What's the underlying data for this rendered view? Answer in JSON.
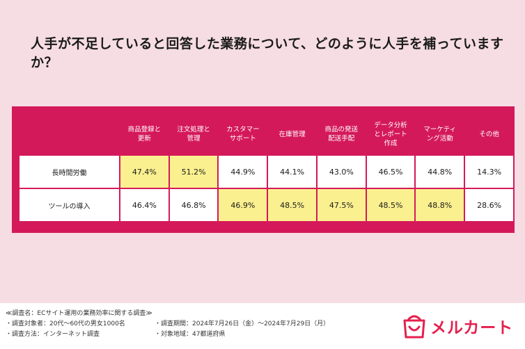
{
  "title": "人手が不足していると回答した業務について、どのように人手を補っていますか？",
  "chart_data": {
    "type": "table",
    "columns": [
      "商品登録と\n更新",
      "注文処理と\n管理",
      "カスタマー\nサポート",
      "在庫管理",
      "商品の発送\n配送手配",
      "データ分析\nとレポート\n作成",
      "マーケティ\nング活動",
      "その他"
    ],
    "rows": [
      {
        "label": "長時間労働",
        "values": [
          "47.4%",
          "51.2%",
          "44.9%",
          "44.1%",
          "43.0%",
          "46.5%",
          "44.8%",
          "14.3%"
        ],
        "highlight": [
          true,
          true,
          false,
          false,
          false,
          false,
          false,
          false
        ]
      },
      {
        "label": "ツールの導入",
        "values": [
          "46.4%",
          "46.8%",
          "46.9%",
          "48.5%",
          "47.5%",
          "48.5%",
          "48.8%",
          "28.6%"
        ],
        "highlight": [
          false,
          false,
          true,
          true,
          true,
          true,
          true,
          false
        ]
      }
    ],
    "colors": {
      "header": "#d4195a",
      "highlight": "#fbf08f",
      "cell": "#ffffff"
    }
  },
  "footer": {
    "survey_name": "≪調査名：ECサイト運用の業務効率に関する調査≫",
    "target": "・調査対象者：20代〜60代の男女1000名",
    "period": "・調査期間：2024年7月26日（金）〜2024年7月29日（月）",
    "method": "・調査方法：インターネット調査",
    "region": "・対象地域：47都道府県"
  },
  "logo": {
    "text": "メルカート",
    "icon": "mercart-bag-icon",
    "color": "#e4204e"
  },
  "colors": {
    "background": "#f6dde3",
    "accent": "#d4195a"
  }
}
